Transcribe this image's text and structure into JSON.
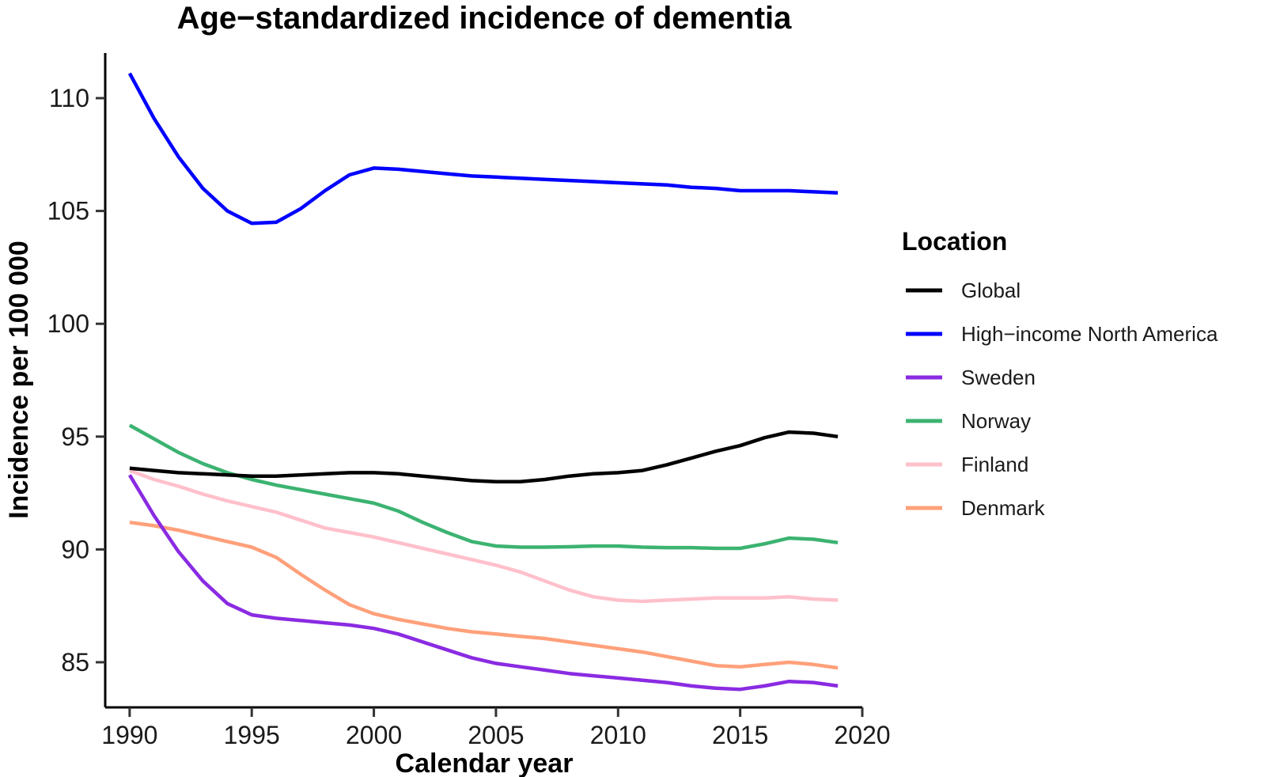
{
  "chart_data": {
    "type": "line",
    "title": "Age−standardized incidence of dementia",
    "xlabel": "Calendar year",
    "ylabel": "Incidence per 100 000",
    "xlim": [
      1989.0,
      2020.0
    ],
    "ylim": [
      83.0,
      112.0
    ],
    "xticks": [
      1990,
      1995,
      2000,
      2005,
      2010,
      2015,
      2020
    ],
    "yticks": [
      85,
      90,
      95,
      100,
      105,
      110
    ],
    "legend": {
      "title": "Location",
      "position": "right"
    },
    "x": [
      1990,
      1991,
      1992,
      1993,
      1994,
      1995,
      1996,
      1997,
      1998,
      1999,
      2000,
      2001,
      2002,
      2003,
      2004,
      2005,
      2006,
      2007,
      2008,
      2009,
      2010,
      2011,
      2012,
      2013,
      2014,
      2015,
      2016,
      2017,
      2018,
      2019
    ],
    "series": [
      {
        "name": "Global",
        "color": "#000000",
        "values": [
          93.6,
          93.5,
          93.4,
          93.35,
          93.3,
          93.25,
          93.25,
          93.3,
          93.35,
          93.4,
          93.4,
          93.35,
          93.25,
          93.15,
          93.05,
          93.0,
          93.0,
          93.1,
          93.25,
          93.35,
          93.4,
          93.5,
          93.75,
          94.05,
          94.35,
          94.6,
          94.95,
          95.2,
          95.15,
          95.0
        ]
      },
      {
        "name": "High−income North America",
        "color": "#0000FF",
        "values": [
          111.1,
          109.1,
          107.4,
          106.0,
          105.0,
          104.45,
          104.5,
          105.1,
          105.9,
          106.6,
          106.9,
          106.85,
          106.75,
          106.65,
          106.55,
          106.5,
          106.45,
          106.4,
          106.35,
          106.3,
          106.25,
          106.2,
          106.15,
          106.05,
          106.0,
          105.9,
          105.9,
          105.9,
          105.85,
          105.8
        ]
      },
      {
        "name": "Sweden",
        "color": "#8A2BE2",
        "values": [
          93.3,
          91.5,
          89.9,
          88.6,
          87.6,
          87.1,
          86.95,
          86.85,
          86.75,
          86.65,
          86.5,
          86.25,
          85.9,
          85.55,
          85.2,
          84.95,
          84.8,
          84.65,
          84.5,
          84.4,
          84.3,
          84.2,
          84.1,
          83.95,
          83.85,
          83.8,
          83.95,
          84.15,
          84.1,
          83.95
        ]
      },
      {
        "name": "Norway",
        "color": "#3CB371",
        "values": [
          95.5,
          94.9,
          94.3,
          93.8,
          93.4,
          93.1,
          92.85,
          92.65,
          92.45,
          92.25,
          92.05,
          91.7,
          91.2,
          90.75,
          90.35,
          90.15,
          90.1,
          90.1,
          90.12,
          90.15,
          90.15,
          90.1,
          90.08,
          90.08,
          90.05,
          90.05,
          90.25,
          90.5,
          90.45,
          90.3
        ]
      },
      {
        "name": "Finland",
        "color": "#FFC0CB",
        "values": [
          93.5,
          93.1,
          92.8,
          92.45,
          92.15,
          91.9,
          91.65,
          91.3,
          90.95,
          90.75,
          90.55,
          90.3,
          90.05,
          89.8,
          89.55,
          89.3,
          89.0,
          88.6,
          88.2,
          87.9,
          87.75,
          87.7,
          87.75,
          87.8,
          87.85,
          87.85,
          87.85,
          87.9,
          87.8,
          87.75
        ]
      },
      {
        "name": "Denmark",
        "color": "#FFA07A",
        "values": [
          91.2,
          91.05,
          90.85,
          90.6,
          90.35,
          90.1,
          89.65,
          88.9,
          88.2,
          87.55,
          87.15,
          86.9,
          86.7,
          86.5,
          86.35,
          86.25,
          86.15,
          86.05,
          85.9,
          85.75,
          85.6,
          85.45,
          85.25,
          85.05,
          84.85,
          84.8,
          84.9,
          85.0,
          84.9,
          84.75
        ]
      }
    ]
  }
}
